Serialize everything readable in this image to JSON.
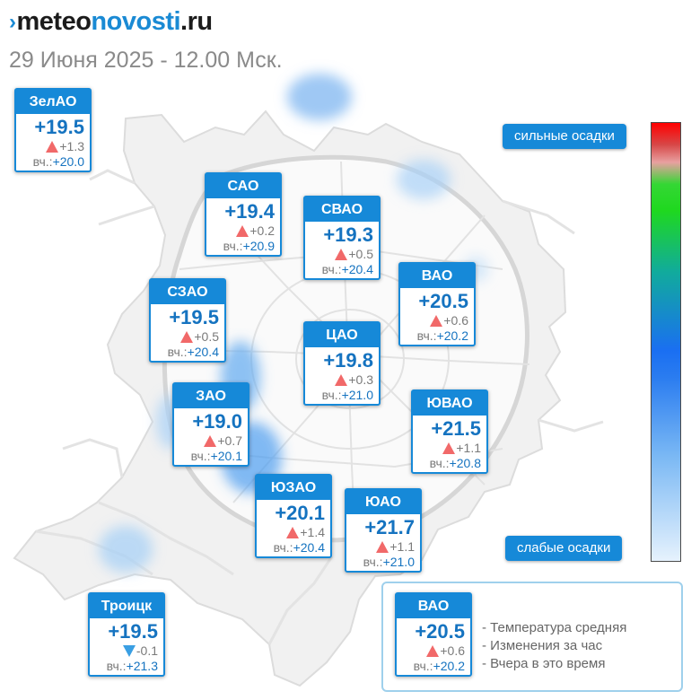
{
  "brand": {
    "part1": "meteo",
    "part2": "novosti",
    "part3": ".ru",
    "arrow": "›"
  },
  "date_line": "29 Июня 2025 - 12.00 Мск.",
  "colors": {
    "accent": "#1689d8",
    "temp": "#1573c0",
    "rise": "#f16969",
    "fall": "#3a9fe3"
  },
  "districts": [
    {
      "key": "zelao",
      "name": "ЗелАО",
      "temp": "+19.5",
      "trend": "up",
      "change": "+1.3",
      "yesterday_label": "вч.:",
      "yesterday": "+20.0"
    },
    {
      "key": "sao",
      "name": "САО",
      "temp": "+19.4",
      "trend": "up",
      "change": "+0.2",
      "yesterday_label": "вч.:",
      "yesterday": "+20.9"
    },
    {
      "key": "svao",
      "name": "СВАО",
      "temp": "+19.3",
      "trend": "up",
      "change": "+0.5",
      "yesterday_label": "вч.:",
      "yesterday": "+20.4"
    },
    {
      "key": "vao",
      "name": "ВАО",
      "temp": "+20.5",
      "trend": "up",
      "change": "+0.6",
      "yesterday_label": "вч.:",
      "yesterday": "+20.2"
    },
    {
      "key": "szao",
      "name": "СЗАО",
      "temp": "+19.5",
      "trend": "up",
      "change": "+0.5",
      "yesterday_label": "вч.:",
      "yesterday": "+20.4"
    },
    {
      "key": "cao",
      "name": "ЦАО",
      "temp": "+19.8",
      "trend": "up",
      "change": "+0.3",
      "yesterday_label": "вч.:",
      "yesterday": "+21.0"
    },
    {
      "key": "zao",
      "name": "ЗАО",
      "temp": "+19.0",
      "trend": "up",
      "change": "+0.7",
      "yesterday_label": "вч.:",
      "yesterday": "+20.1"
    },
    {
      "key": "yuvao",
      "name": "ЮВАО",
      "temp": "+21.5",
      "trend": "up",
      "change": "+1.1",
      "yesterday_label": "вч.:",
      "yesterday": "+20.8"
    },
    {
      "key": "yuzao",
      "name": "ЮЗАО",
      "temp": "+20.1",
      "trend": "up",
      "change": "+1.4",
      "yesterday_label": "вч.:",
      "yesterday": "+20.4"
    },
    {
      "key": "yuao",
      "name": "ЮАО",
      "temp": "+21.7",
      "trend": "up",
      "change": "+1.1",
      "yesterday_label": "вч.:",
      "yesterday": "+21.0"
    },
    {
      "key": "troitsk",
      "name": "Троицк",
      "temp": "+19.5",
      "trend": "down",
      "change": "-0.1",
      "yesterday_label": "вч.:",
      "yesterday": "+21.3"
    }
  ],
  "precip_scale": {
    "top_label": "сильные осадки",
    "bottom_label": "слабые осадки"
  },
  "legend": {
    "sample": {
      "name": "ВАО",
      "temp": "+20.5",
      "trend": "up",
      "change": "+0.6",
      "yesterday_label": "вч.:",
      "yesterday": "+20.2"
    },
    "notes": [
      "- Температура средняя",
      "- Изменения за час",
      "- Вчера в это время"
    ]
  }
}
